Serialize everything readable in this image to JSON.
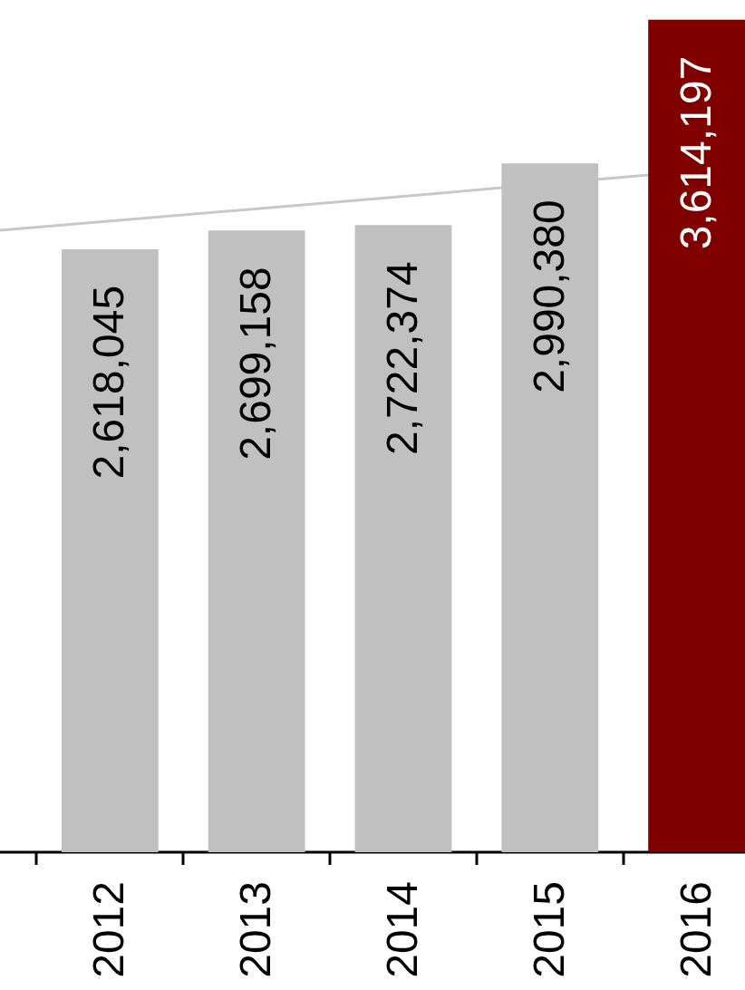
{
  "chart_data": {
    "type": "bar",
    "x": [
      2012,
      2013,
      2014,
      2015,
      2016
    ],
    "xlim": [
      2011.25,
      2016.33
    ],
    "xticks": [
      {
        "value": 2011.5,
        "label": null
      },
      2012,
      {
        "value": 2012.5,
        "label": null
      },
      2013,
      {
        "value": 2013.5,
        "label": null
      },
      2014,
      {
        "value": 2014.5,
        "label": null
      },
      2015,
      {
        "value": 2015.5,
        "label": null
      },
      2016
    ],
    "ylim": [
      0,
      3700000
    ],
    "tick_labels": "x",
    "series": [
      {
        "colors": [
          "#c0c0c0",
          "#c0c0c0",
          "#c0c0c0",
          "#c0c0c0",
          "#800000"
        ],
        "values": [
          2618045,
          2699158,
          2722374,
          2990380,
          3614197
        ],
        "value_labels": [
          "2,618,045",
          "2,699,158",
          "2,722,374",
          "2,990,380",
          "3,614,197"
        ]
      },
      {
        "type": "line",
        "color": "#c8c8c8",
        "x": [
          2011.25,
          2013.5,
          2015.67
        ],
        "values": [
          2700000,
          2820000,
          2940000
        ]
      }
    ]
  }
}
